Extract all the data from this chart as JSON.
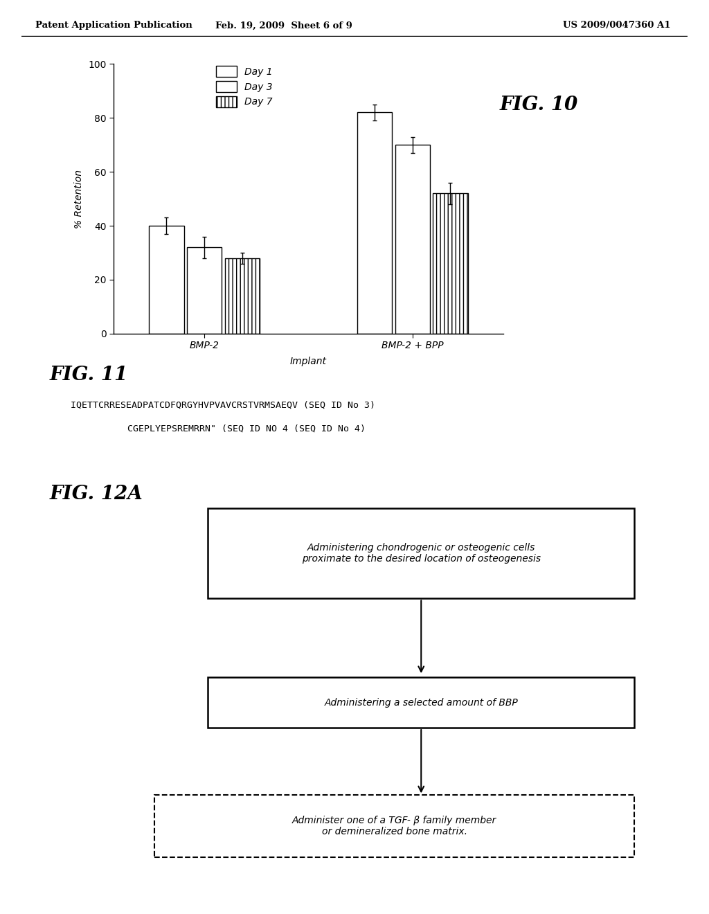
{
  "header_left": "Patent Application Publication",
  "header_mid": "Feb. 19, 2009  Sheet 6 of 9",
  "header_right": "US 2009/0047360 A1",
  "fig10_title": "FIG. 10",
  "fig10_ylabel": "% Retention",
  "fig10_xlabel": "Implant",
  "fig10_ylim": [
    0,
    100
  ],
  "fig10_yticks": [
    0,
    20,
    40,
    60,
    80,
    100
  ],
  "fig10_groups": [
    "BMP-2",
    "BMP-2 + BPP"
  ],
  "fig10_legend": [
    "Day 1",
    "Day 3",
    "Day 7"
  ],
  "fig10_values": [
    [
      40,
      32,
      28
    ],
    [
      82,
      70,
      52
    ]
  ],
  "fig10_errors": [
    [
      3,
      4,
      2
    ],
    [
      3,
      3,
      4
    ]
  ],
  "fig11_title": "FIG. 11",
  "fig11_line1": "IQETTCRRESEADPATCDFQRGYHVPVAVCRSTVRMSAEQV (SEQ ID No 3)",
  "fig11_line2": "CGEPLYEPSREMRRN\" (SEQ ID NO 4 (SEQ ID No 4)",
  "fig12a_title": "FIG. 12A",
  "fig12a_box1": "Administering chondrogenic or osteogenic cells\nproximate to the desired location of osteogenesis",
  "fig12a_box2": "Administering a selected amount of BBP",
  "fig12a_box3": "Administer one of a TGF- β family member\nor demineralized bone matrix.",
  "bg_color": "#ffffff",
  "text_color": "#000000"
}
